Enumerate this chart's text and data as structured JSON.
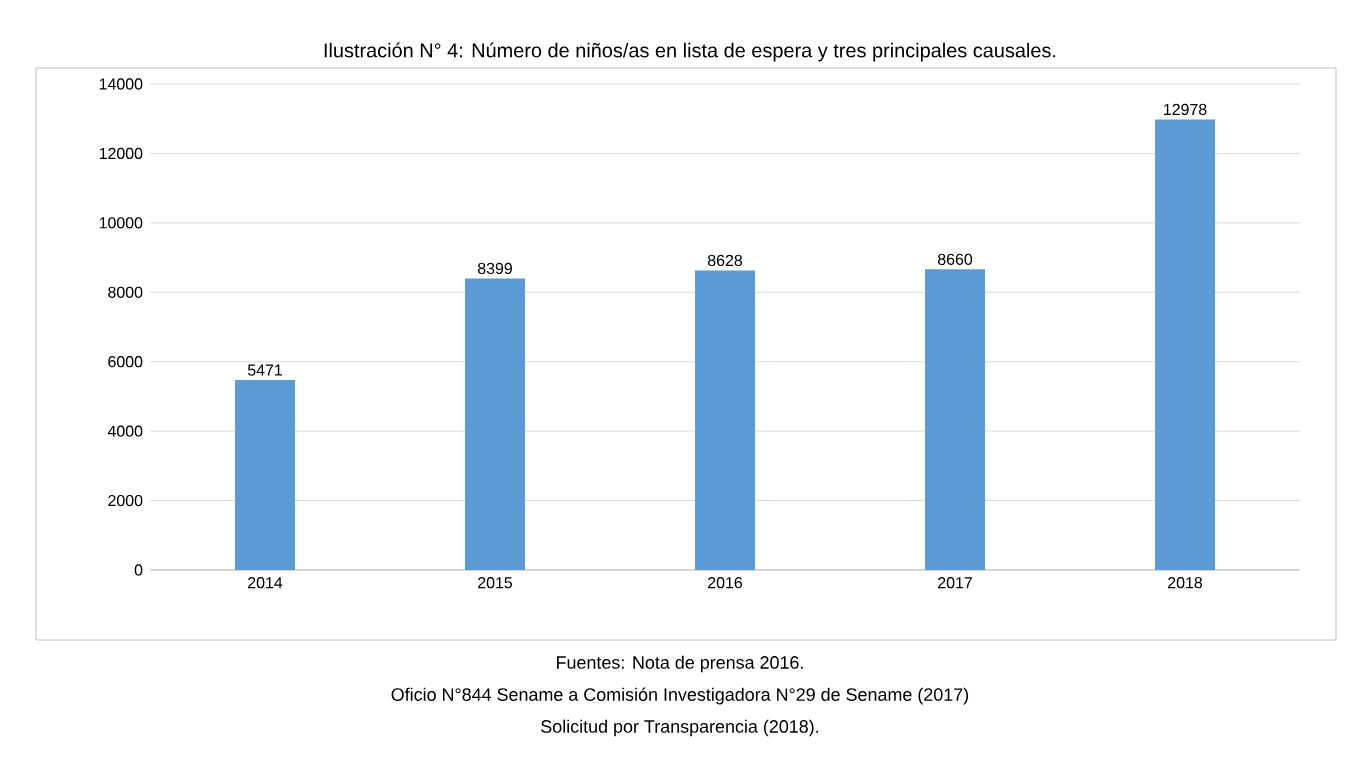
{
  "chart_data": {
    "type": "bar",
    "title": "Ilustración N° 4: Número de niños/as en lista de espera y tres principales causales.",
    "categories": [
      "2014",
      "2015",
      "2016",
      "2017",
      "2018"
    ],
    "values": [
      5471,
      8399,
      8628,
      8660,
      12978
    ],
    "color": "#5b9bd5",
    "ylim": [
      0,
      14000
    ],
    "yticks": [
      0,
      2000,
      4000,
      6000,
      8000,
      10000,
      12000,
      14000
    ],
    "grid": "y",
    "data_labels": true,
    "annotations": [
      "Fuentes: Nota de prensa 2016.",
      "Oficio N°844 Sename a Comisión Investigadora N°29 de Sename (2017)",
      "Solicitud por Transparencia (2018)."
    ]
  }
}
